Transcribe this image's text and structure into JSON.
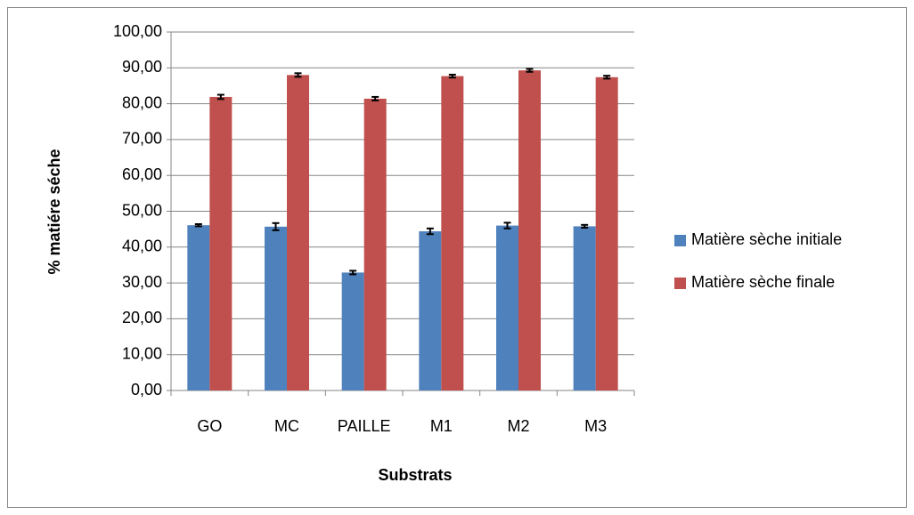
{
  "chart_data": {
    "type": "bar",
    "x_label": "Substrats",
    "y_label": "% matiére séche",
    "categories": [
      "GO",
      "MC",
      "PAILLE",
      "M1",
      "M2",
      "M3"
    ],
    "series": [
      {
        "name": "Matière sèche initiale",
        "color": "#4f81bd",
        "values": [
          46.1,
          45.7,
          32.9,
          44.4,
          46.0,
          45.8
        ],
        "errors": [
          0.3,
          1.0,
          0.5,
          0.8,
          0.8,
          0.4
        ]
      },
      {
        "name": "Matière sèche finale",
        "color": "#c0504d",
        "values": [
          81.9,
          88.0,
          81.4,
          87.7,
          89.3,
          87.4
        ],
        "errors": [
          0.6,
          0.5,
          0.5,
          0.4,
          0.4,
          0.4
        ]
      }
    ],
    "ylim": [
      0,
      100
    ],
    "yticks": [
      {
        "value": 0,
        "label": "0,00"
      },
      {
        "value": 10,
        "label": "10,00"
      },
      {
        "value": 20,
        "label": "20,00"
      },
      {
        "value": 30,
        "label": "30,00"
      },
      {
        "value": 40,
        "label": "40,00"
      },
      {
        "value": 50,
        "label": "50,00"
      },
      {
        "value": 60,
        "label": "60,00"
      },
      {
        "value": 70,
        "label": "70,00"
      },
      {
        "value": 80,
        "label": "80,00"
      },
      {
        "value": 90,
        "label": "90,00"
      },
      {
        "value": 100,
        "label": "100,00"
      }
    ],
    "grid": true,
    "legend": "right"
  }
}
